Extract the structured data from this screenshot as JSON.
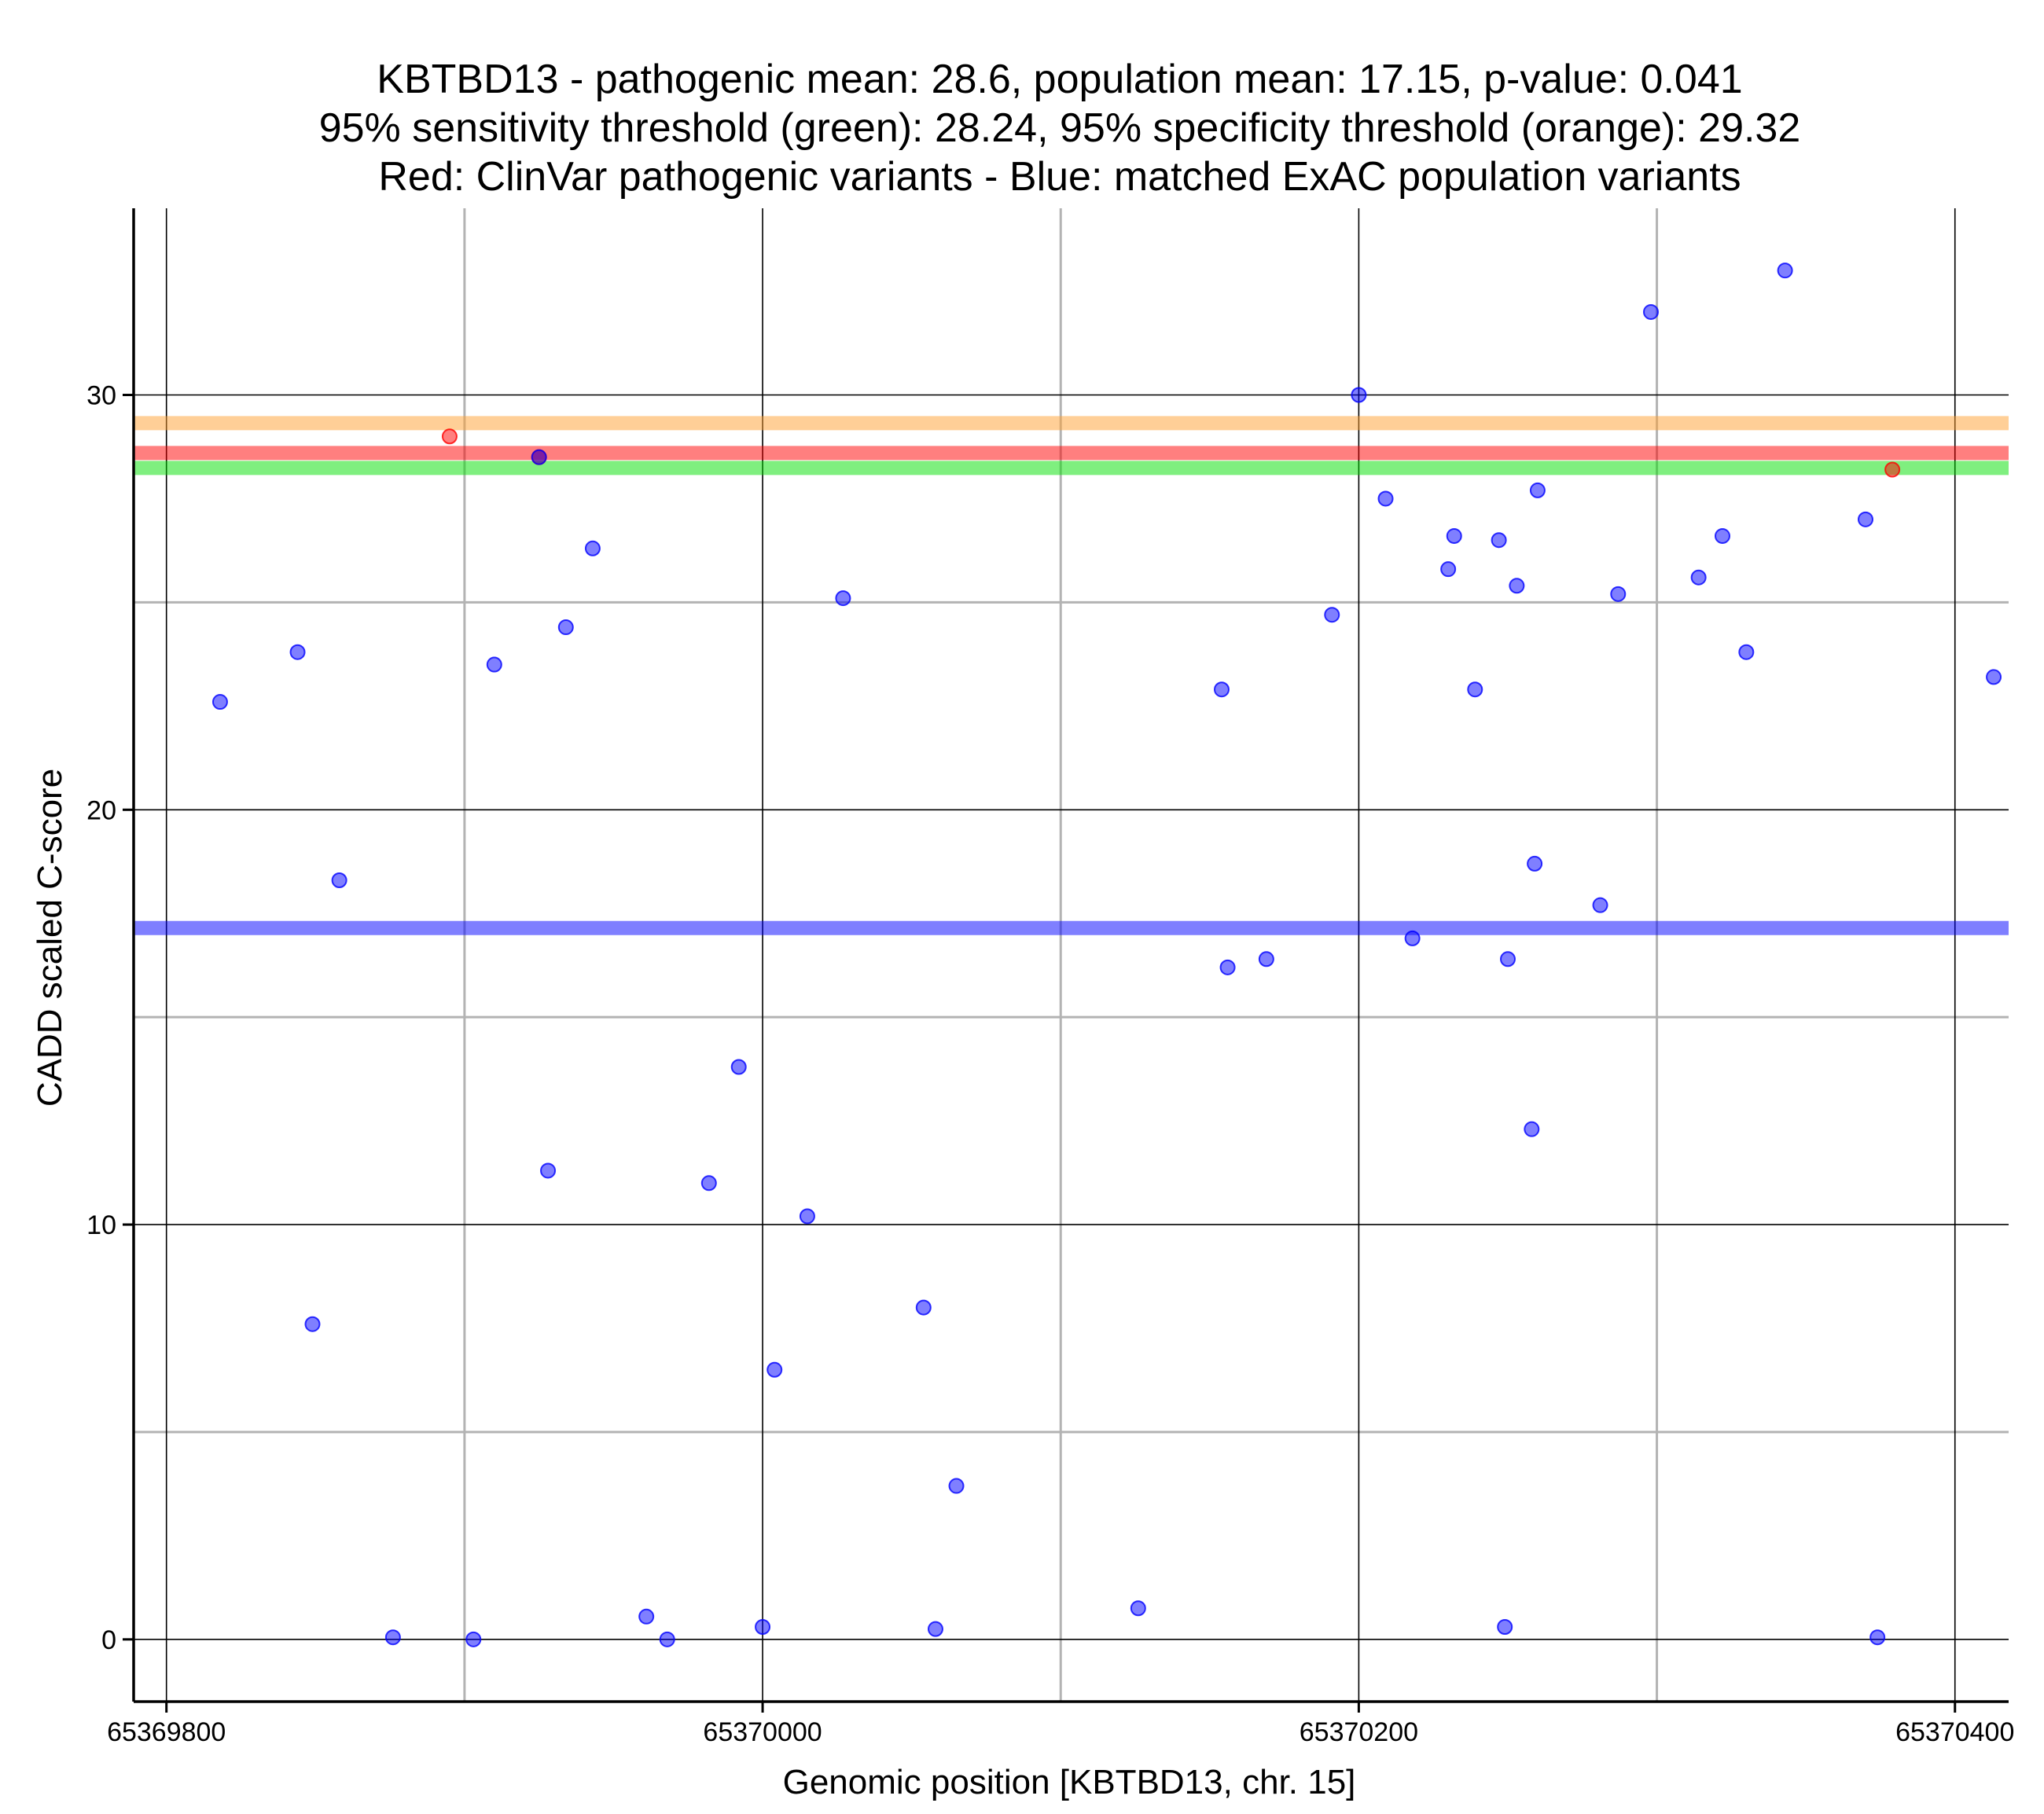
{
  "chart_data": {
    "type": "scatter",
    "title": [
      "KBTBD13 - pathogenic mean: 28.6, population mean: 17.15, p-value: 0.041",
      "95% sensitivity threshold (green): 28.24, 95% specificity threshold (orange): 29.32",
      "Red: ClinVar pathogenic variants - Blue: matched ExAC population variants"
    ],
    "xlabel": "Genomic position [KBTBD13, chr. 15]",
    "ylabel": "CADD scaled C-score",
    "xlim": [
      65369789,
      65370418
    ],
    "ylim": [
      -1.5,
      34.5
    ],
    "x_ticks": [
      65369800,
      65370000,
      65370200,
      65370400
    ],
    "x_tick_labels": [
      "65369800",
      "65370000",
      "65370200",
      "65370400"
    ],
    "x_minor_ticks": [
      65369900,
      65370100,
      65370300
    ],
    "y_ticks": [
      0,
      10,
      20,
      30
    ],
    "y_tick_labels": [
      "0",
      "10",
      "20",
      "30"
    ],
    "y_minor_ticks": [
      5,
      15,
      25
    ],
    "grid": true,
    "colors": {
      "population": "#0000ff",
      "pathogenic": "#ff0000",
      "sensitivity": "#00e000",
      "specificity": "#ffa030",
      "pathogenic_mean": "#ff0000",
      "population_mean": "#0000ff"
    },
    "reference_lines": [
      {
        "series": "specificity",
        "y": 29.32
      },
      {
        "series": "pathogenic_mean",
        "y": 28.6
      },
      {
        "series": "sensitivity",
        "y": 28.24
      },
      {
        "series": "population_mean",
        "y": 17.15
      }
    ],
    "series": [
      {
        "group": "pathogenic",
        "points": [
          {
            "x": 65369895,
            "y": 29.0
          },
          {
            "x": 65369925,
            "y": 28.5
          },
          {
            "x": 65370379,
            "y": 28.2
          }
        ]
      },
      {
        "group": "population",
        "points": [
          {
            "x": 65369818,
            "y": 22.6
          },
          {
            "x": 65369844,
            "y": 23.8
          },
          {
            "x": 65369849,
            "y": 7.6
          },
          {
            "x": 65369858,
            "y": 18.3
          },
          {
            "x": 65369876,
            "y": 0.05
          },
          {
            "x": 65369903,
            "y": 0.0
          },
          {
            "x": 65369910,
            "y": 23.5
          },
          {
            "x": 65369925,
            "y": 28.5
          },
          {
            "x": 65369928,
            "y": 11.3
          },
          {
            "x": 65369934,
            "y": 24.4
          },
          {
            "x": 65369943,
            "y": 26.3
          },
          {
            "x": 65369961,
            "y": 0.55
          },
          {
            "x": 65369968,
            "y": 0.0
          },
          {
            "x": 65369982,
            "y": 11.0
          },
          {
            "x": 65369992,
            "y": 13.8
          },
          {
            "x": 65370000,
            "y": 0.3
          },
          {
            "x": 65370004,
            "y": 6.5
          },
          {
            "x": 65370015,
            "y": 10.2
          },
          {
            "x": 65370027,
            "y": 25.1
          },
          {
            "x": 65370054,
            "y": 8.0
          },
          {
            "x": 65370058,
            "y": 0.25
          },
          {
            "x": 65370065,
            "y": 3.7
          },
          {
            "x": 65370126,
            "y": 0.75
          },
          {
            "x": 65370154,
            "y": 22.9
          },
          {
            "x": 65370156,
            "y": 16.2
          },
          {
            "x": 65370169,
            "y": 16.4
          },
          {
            "x": 65370191,
            "y": 24.7
          },
          {
            "x": 65370200,
            "y": 30.0
          },
          {
            "x": 65370209,
            "y": 27.5
          },
          {
            "x": 65370218,
            "y": 16.9
          },
          {
            "x": 65370230,
            "y": 25.8
          },
          {
            "x": 65370232,
            "y": 26.6
          },
          {
            "x": 65370239,
            "y": 22.9
          },
          {
            "x": 65370247,
            "y": 26.5
          },
          {
            "x": 65370249,
            "y": 0.3
          },
          {
            "x": 65370250,
            "y": 16.4
          },
          {
            "x": 65370253,
            "y": 25.4
          },
          {
            "x": 65370258,
            "y": 12.3
          },
          {
            "x": 65370259,
            "y": 18.7
          },
          {
            "x": 65370260,
            "y": 27.7
          },
          {
            "x": 65370281,
            "y": 17.7
          },
          {
            "x": 65370287,
            "y": 25.2
          },
          {
            "x": 65370298,
            "y": 32.0
          },
          {
            "x": 65370314,
            "y": 25.6
          },
          {
            "x": 65370322,
            "y": 26.6
          },
          {
            "x": 65370330,
            "y": 23.8
          },
          {
            "x": 65370343,
            "y": 33.0
          },
          {
            "x": 65370370,
            "y": 27.0
          },
          {
            "x": 65370374,
            "y": 0.05
          },
          {
            "x": 65370413,
            "y": 23.2
          }
        ]
      }
    ]
  }
}
